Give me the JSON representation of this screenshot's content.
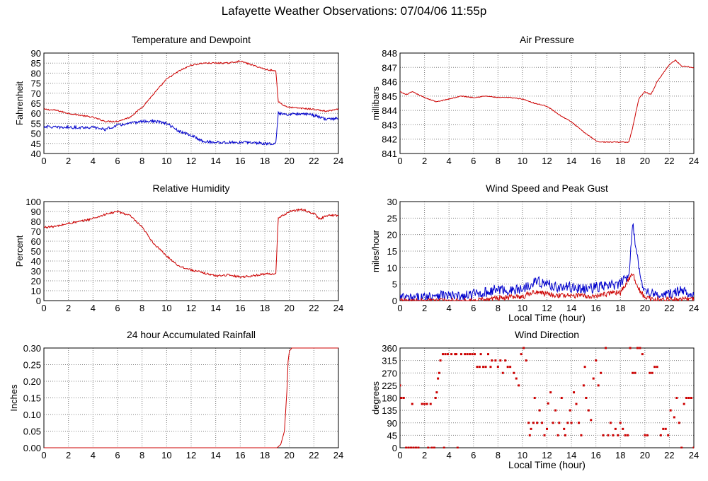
{
  "page": {
    "title": "Lafayette Weather Observations: 07/04/06 11:55p"
  },
  "colors": {
    "red": "#cc0000",
    "blue": "#0000cc",
    "grid": "#808080",
    "axis": "#000000"
  },
  "chart_data": [
    {
      "type": "line",
      "title": "Temperature and Dewpoint",
      "xlabel": "",
      "ylabel": "Fahrenheit",
      "xlim": [
        0,
        24
      ],
      "ylim": [
        40,
        90
      ],
      "xticks": [
        0,
        2,
        4,
        6,
        8,
        10,
        12,
        14,
        16,
        18,
        20,
        22,
        24
      ],
      "yticks": [
        40,
        45,
        50,
        55,
        60,
        65,
        70,
        75,
        80,
        85,
        90
      ],
      "grid": true,
      "series": [
        {
          "color": "red",
          "noise": 0.35,
          "x": [
            0,
            1,
            2,
            3,
            4,
            5,
            6,
            7,
            8,
            9,
            10,
            11,
            12,
            13,
            14,
            15,
            16,
            17,
            18,
            18.9,
            19.1,
            19.5,
            20,
            21,
            22,
            23,
            24
          ],
          "y": [
            62,
            61.5,
            60,
            59,
            58,
            56,
            56,
            58,
            63,
            70,
            77,
            81,
            84,
            85,
            85,
            85,
            86,
            84,
            82,
            81,
            66,
            64,
            63,
            62.5,
            62,
            61,
            62
          ]
        },
        {
          "color": "blue",
          "noise": 0.7,
          "x": [
            0,
            1,
            2,
            3,
            4,
            5,
            6,
            7,
            8,
            9,
            10,
            11,
            12,
            13,
            14,
            15,
            16,
            17,
            18,
            18.9,
            19.1,
            20,
            21,
            22,
            23,
            24
          ],
          "y": [
            53.5,
            53,
            53,
            53,
            53,
            52,
            54,
            55,
            56,
            56,
            55,
            51,
            49,
            46,
            45.5,
            45.5,
            45.5,
            45.5,
            45,
            45,
            60,
            59.5,
            60,
            59,
            57,
            57.5
          ]
        }
      ]
    },
    {
      "type": "line",
      "title": "Air Pressure",
      "xlabel": "",
      "ylabel": "millibars",
      "xlim": [
        0,
        24
      ],
      "ylim": [
        841,
        848
      ],
      "xticks": [
        0,
        2,
        4,
        6,
        8,
        10,
        12,
        14,
        16,
        18,
        20,
        22,
        24
      ],
      "yticks": [
        841,
        842,
        843,
        844,
        845,
        846,
        847,
        848
      ],
      "grid": true,
      "series": [
        {
          "color": "red",
          "noise": 0.03,
          "x": [
            0,
            0.5,
            1,
            2,
            3,
            4,
            5,
            6,
            7,
            8,
            9,
            10,
            11,
            12,
            13,
            14,
            15,
            16,
            16.3,
            18.7,
            19,
            19.5,
            20,
            20.5,
            21,
            22,
            22.5,
            23,
            24
          ],
          "y": [
            845.3,
            845.1,
            845.3,
            844.9,
            844.6,
            844.8,
            845.0,
            844.9,
            845.0,
            844.9,
            844.9,
            844.8,
            844.5,
            844.3,
            843.7,
            843.2,
            842.5,
            841.9,
            841.8,
            841.8,
            842.8,
            844.8,
            845.3,
            845.1,
            846.0,
            847.2,
            847.5,
            847.1,
            847.0
          ]
        }
      ]
    },
    {
      "type": "line",
      "title": "Relative Humidity",
      "xlabel": "",
      "ylabel": "Percent",
      "xlim": [
        0,
        24
      ],
      "ylim": [
        0,
        100
      ],
      "xticks": [
        0,
        2,
        4,
        6,
        8,
        10,
        12,
        14,
        16,
        18,
        20,
        22,
        24
      ],
      "yticks": [
        0,
        10,
        20,
        30,
        40,
        50,
        60,
        70,
        80,
        90,
        100
      ],
      "grid": true,
      "series": [
        {
          "color": "red",
          "noise": 1.0,
          "x": [
            0,
            1,
            2,
            3,
            4,
            5,
            6,
            7,
            8,
            9,
            10,
            11,
            12,
            13,
            14,
            15,
            16,
            17,
            18,
            18.9,
            19.1,
            20,
            21,
            22,
            22.5,
            23,
            24
          ],
          "y": [
            74,
            75,
            78,
            80,
            83,
            87,
            90,
            86,
            74,
            57,
            45,
            35,
            31,
            28,
            25,
            26,
            24,
            25,
            27,
            27,
            83,
            90,
            92,
            88,
            82,
            86,
            86
          ]
        }
      ]
    },
    {
      "type": "line",
      "title": "Wind Speed and Peak Gust",
      "xlabel": "Local Time (hour)",
      "ylabel": "miles/hour",
      "xlim": [
        0,
        24
      ],
      "ylim": [
        0,
        30
      ],
      "xticks": [
        0,
        2,
        4,
        6,
        8,
        10,
        12,
        14,
        16,
        18,
        20,
        22,
        24
      ],
      "yticks": [
        0,
        5,
        10,
        15,
        20,
        25,
        30
      ],
      "grid": true,
      "series": [
        {
          "color": "blue",
          "noise": 1.6,
          "floor": 0,
          "x": [
            0,
            1,
            2,
            3,
            4,
            5,
            6,
            7,
            8,
            9,
            10,
            11,
            12,
            13,
            14,
            15,
            16,
            17,
            18,
            18.7,
            19,
            19.3,
            19.6,
            20,
            21,
            22,
            23,
            24
          ],
          "y": [
            1,
            0.5,
            1,
            2,
            1.5,
            1,
            2,
            2.5,
            3.5,
            3,
            3.5,
            6,
            5,
            4,
            4,
            3.5,
            4,
            4.5,
            5,
            8,
            24,
            15,
            8,
            3,
            1.5,
            2,
            3,
            2
          ]
        },
        {
          "color": "red",
          "noise": 0.8,
          "floor": 0,
          "x": [
            0,
            1,
            2,
            3,
            4,
            5,
            6,
            7,
            8,
            9,
            10,
            11,
            12,
            13,
            14,
            15,
            16,
            17,
            18,
            19,
            19.5,
            20,
            21,
            22,
            23,
            24
          ],
          "y": [
            0,
            0,
            0,
            0,
            0,
            0,
            0,
            0.3,
            0.8,
            1,
            1.2,
            2.5,
            2,
            1.5,
            1.5,
            1.5,
            1.5,
            2,
            2.5,
            8,
            3.5,
            1,
            0.3,
            0.3,
            0.6,
            0.3
          ]
        }
      ]
    },
    {
      "type": "line",
      "title": "24 hour Accumulated Rainfall",
      "xlabel": "",
      "ylabel": "Inches",
      "xlim": [
        0,
        24
      ],
      "ylim": [
        0,
        0.3
      ],
      "xticks": [
        0,
        2,
        4,
        6,
        8,
        10,
        12,
        14,
        16,
        18,
        20,
        22,
        24
      ],
      "yticks": [
        0.0,
        0.05,
        0.1,
        0.15,
        0.2,
        0.25,
        0.3
      ],
      "ytick_labels": [
        "0.00",
        "0.05",
        "0.10",
        "0.15",
        "0.20",
        "0.25",
        "0.30"
      ],
      "grid": true,
      "series": [
        {
          "color": "red",
          "noise": 0,
          "x": [
            0,
            19,
            19.3,
            19.6,
            19.8,
            19.9,
            20.0,
            20.2,
            24
          ],
          "y": [
            0,
            0,
            0.01,
            0.05,
            0.17,
            0.26,
            0.29,
            0.3,
            0.3
          ]
        }
      ]
    },
    {
      "type": "scatter",
      "title": "Wind Direction",
      "xlabel": "Local Time (hour)",
      "ylabel": "degrees",
      "xlim": [
        0,
        24
      ],
      "ylim": [
        0,
        360
      ],
      "xticks": [
        0,
        2,
        4,
        6,
        8,
        10,
        12,
        14,
        16,
        18,
        20,
        22,
        24
      ],
      "yticks": [
        0,
        45,
        90,
        135,
        180,
        225,
        270,
        315,
        360
      ],
      "grid": true,
      "series": [
        {
          "color": "red",
          "points": [
            [
              0,
              225
            ],
            [
              0.1,
              180
            ],
            [
              0.3,
              180
            ],
            [
              0.5,
              0
            ],
            [
              0.7,
              0
            ],
            [
              0.9,
              0
            ],
            [
              1.1,
              0
            ],
            [
              1.3,
              0
            ],
            [
              1.5,
              0
            ],
            [
              1.0,
              158
            ],
            [
              1.8,
              158
            ],
            [
              2.0,
              158
            ],
            [
              2.2,
              158
            ],
            [
              2.5,
              158
            ],
            [
              2.3,
              0
            ],
            [
              2.6,
              0
            ],
            [
              2.8,
              0
            ],
            [
              2.9,
              180
            ],
            [
              3.0,
              200
            ],
            [
              3.1,
              250
            ],
            [
              3.2,
              270
            ],
            [
              3.3,
              315
            ],
            [
              3.5,
              338
            ],
            [
              3.7,
              338
            ],
            [
              3.9,
              338
            ],
            [
              3.6,
              0
            ],
            [
              4.2,
              338
            ],
            [
              4.5,
              338
            ],
            [
              4.7,
              0
            ],
            [
              4.6,
              338
            ],
            [
              5.0,
              338
            ],
            [
              5.3,
              338
            ],
            [
              5.5,
              338
            ],
            [
              5.7,
              338
            ],
            [
              5.9,
              338
            ],
            [
              6.1,
              338
            ],
            [
              6.3,
              292
            ],
            [
              6.5,
              292
            ],
            [
              6.8,
              292
            ],
            [
              7.0,
              292
            ],
            [
              6.6,
              338
            ],
            [
              7.2,
              338
            ],
            [
              7.5,
              315
            ],
            [
              7.8,
              315
            ],
            [
              7.4,
              292
            ],
            [
              8.0,
              292
            ],
            [
              8.2,
              315
            ],
            [
              8.4,
              270
            ],
            [
              8.6,
              315
            ],
            [
              8.8,
              292
            ],
            [
              9.0,
              292
            ],
            [
              9.3,
              270
            ],
            [
              9.5,
              250
            ],
            [
              9.7,
              225
            ],
            [
              9.9,
              338
            ],
            [
              10.1,
              360
            ],
            [
              10.3,
              315
            ],
            [
              10.5,
              90
            ],
            [
              10.6,
              45
            ],
            [
              10.7,
              68
            ],
            [
              10.9,
              90
            ],
            [
              11.0,
              180
            ],
            [
              11.2,
              90
            ],
            [
              11.4,
              135
            ],
            [
              11.6,
              90
            ],
            [
              11.8,
              45
            ],
            [
              12.0,
              68
            ],
            [
              12.1,
              160
            ],
            [
              12.3,
              200
            ],
            [
              12.5,
              90
            ],
            [
              12.7,
              135
            ],
            [
              12.9,
              45
            ],
            [
              13.0,
              90
            ],
            [
              13.2,
              180
            ],
            [
              13.4,
              68
            ],
            [
              13.5,
              45
            ],
            [
              13.7,
              90
            ],
            [
              13.9,
              135
            ],
            [
              14.0,
              90
            ],
            [
              14.2,
              200
            ],
            [
              14.4,
              158
            ],
            [
              14.6,
              90
            ],
            [
              14.8,
              45
            ],
            [
              15.0,
              225
            ],
            [
              15.1,
              292
            ],
            [
              15.2,
              180
            ],
            [
              15.4,
              135
            ],
            [
              15.6,
              100
            ],
            [
              15.8,
              250
            ],
            [
              16.0,
              315
            ],
            [
              16.2,
              225
            ],
            [
              16.4,
              270
            ],
            [
              16.6,
              45
            ],
            [
              16.8,
              360
            ],
            [
              17.0,
              45
            ],
            [
              17.2,
              90
            ],
            [
              17.4,
              45
            ],
            [
              17.6,
              68
            ],
            [
              17.8,
              45
            ],
            [
              18.0,
              90
            ],
            [
              18.2,
              68
            ],
            [
              18.4,
              45
            ],
            [
              18.6,
              45
            ],
            [
              18.8,
              360
            ],
            [
              19.0,
              270
            ],
            [
              19.2,
              270
            ],
            [
              19.4,
              360
            ],
            [
              19.6,
              360
            ],
            [
              19.8,
              338
            ],
            [
              20.0,
              45
            ],
            [
              20.2,
              45
            ],
            [
              20.4,
              270
            ],
            [
              20.6,
              270
            ],
            [
              20.8,
              292
            ],
            [
              21.0,
              292
            ],
            [
              21.3,
              45
            ],
            [
              21.5,
              68
            ],
            [
              21.7,
              68
            ],
            [
              21.9,
              45
            ],
            [
              22.1,
              135
            ],
            [
              22.4,
              110
            ],
            [
              22.6,
              180
            ],
            [
              22.8,
              90
            ],
            [
              23.0,
              0
            ],
            [
              23.2,
              158
            ],
            [
              23.4,
              180
            ],
            [
              23.6,
              180
            ],
            [
              23.8,
              180
            ],
            [
              24.0,
              0
            ]
          ]
        }
      ]
    }
  ]
}
